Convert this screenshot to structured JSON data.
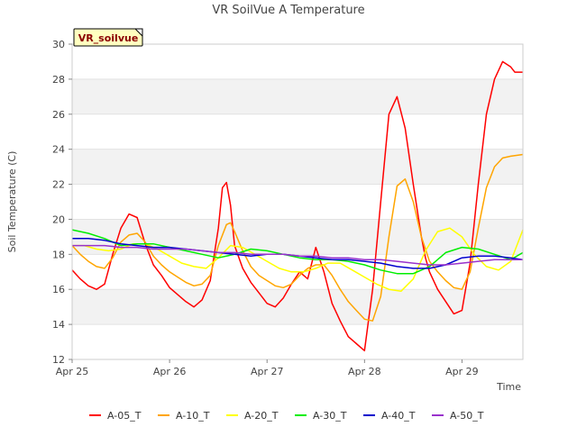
{
  "chart_data": {
    "type": "line",
    "title": "VR SoilVue A Temperature",
    "xlabel": "Time",
    "ylabel": "Soil Temperature (C)",
    "annotation": "VR_soilvue",
    "ylim": [
      12,
      30
    ],
    "yticks": [
      12,
      14,
      16,
      18,
      20,
      22,
      24,
      26,
      28,
      30
    ],
    "xlim": [
      "Apr 25",
      "Apr 29 15:00"
    ],
    "xticks": [
      "Apr 25",
      "Apr 26",
      "Apr 27",
      "Apr 28",
      "Apr 29"
    ],
    "grid": "horizontal bands",
    "legend_position": "bottom",
    "series": [
      {
        "name": "A-05_T",
        "color": "#ff0000",
        "x": [
          "Apr 25 00:00",
          "Apr 25 02:00",
          "Apr 25 04:00",
          "Apr 25 06:00",
          "Apr 25 08:00",
          "Apr 25 10:00",
          "Apr 25 12:00",
          "Apr 25 14:00",
          "Apr 25 16:00",
          "Apr 25 18:00",
          "Apr 25 20:00",
          "Apr 25 22:00",
          "Apr 26 00:00",
          "Apr 26 02:00",
          "Apr 26 04:00",
          "Apr 26 06:00",
          "Apr 26 08:00",
          "Apr 26 10:00",
          "Apr 26 12:00",
          "Apr 26 13:00",
          "Apr 26 14:00",
          "Apr 26 15:00",
          "Apr 26 16:00",
          "Apr 26 18:00",
          "Apr 26 20:00",
          "Apr 26 22:00",
          "Apr 27 00:00",
          "Apr 27 02:00",
          "Apr 27 04:00",
          "Apr 27 06:00",
          "Apr 27 08:00",
          "Apr 27 10:00",
          "Apr 27 12:00",
          "Apr 27 14:00",
          "Apr 27 16:00",
          "Apr 27 18:00",
          "Apr 27 20:00",
          "Apr 27 22:00",
          "Apr 28 00:00",
          "Apr 28 02:00",
          "Apr 28 04:00",
          "Apr 28 06:00",
          "Apr 28 08:00",
          "Apr 28 10:00",
          "Apr 28 12:00",
          "Apr 28 14:00",
          "Apr 28 15:00",
          "Apr 28 16:00",
          "Apr 28 18:00",
          "Apr 28 20:00",
          "Apr 28 22:00",
          "Apr 29 00:00",
          "Apr 29 02:00",
          "Apr 29 04:00",
          "Apr 29 06:00",
          "Apr 29 08:00",
          "Apr 29 10:00",
          "Apr 29 12:00",
          "Apr 29 13:00",
          "Apr 29 14:00",
          "Apr 29 15:00"
        ],
        "y": [
          17.1,
          16.6,
          16.2,
          16.0,
          16.3,
          18.0,
          19.5,
          20.3,
          20.1,
          18.6,
          17.4,
          16.8,
          16.1,
          15.7,
          15.3,
          15.0,
          15.4,
          16.5,
          19.5,
          21.8,
          22.1,
          20.8,
          18.5,
          17.2,
          16.4,
          15.8,
          15.2,
          15.0,
          15.5,
          16.3,
          17.0,
          16.6,
          18.4,
          17.0,
          15.2,
          14.2,
          13.3,
          12.9,
          12.5,
          16.0,
          21.0,
          26.0,
          27.0,
          25.2,
          22.0,
          19.0,
          17.8,
          17.0,
          16.0,
          15.3,
          14.6,
          14.8,
          17.5,
          22.0,
          26.0,
          28.0,
          29.0,
          28.7,
          28.4,
          28.4,
          28.4
        ]
      },
      {
        "name": "A-10_T",
        "color": "#ffa500",
        "x": [
          "Apr 25 00:00",
          "Apr 25 02:00",
          "Apr 25 04:00",
          "Apr 25 06:00",
          "Apr 25 08:00",
          "Apr 25 10:00",
          "Apr 25 12:00",
          "Apr 25 14:00",
          "Apr 25 16:00",
          "Apr 25 18:00",
          "Apr 25 20:00",
          "Apr 25 22:00",
          "Apr 26 00:00",
          "Apr 26 02:00",
          "Apr 26 04:00",
          "Apr 26 06:00",
          "Apr 26 08:00",
          "Apr 26 10:00",
          "Apr 26 12:00",
          "Apr 26 14:00",
          "Apr 26 15:00",
          "Apr 26 16:00",
          "Apr 26 18:00",
          "Apr 26 20:00",
          "Apr 26 22:00",
          "Apr 27 00:00",
          "Apr 27 02:00",
          "Apr 27 04:00",
          "Apr 27 06:00",
          "Apr 27 08:00",
          "Apr 27 10:00",
          "Apr 27 12:00",
          "Apr 27 14:00",
          "Apr 27 16:00",
          "Apr 27 18:00",
          "Apr 27 20:00",
          "Apr 27 22:00",
          "Apr 28 00:00",
          "Apr 28 02:00",
          "Apr 28 04:00",
          "Apr 28 06:00",
          "Apr 28 08:00",
          "Apr 28 10:00",
          "Apr 28 12:00",
          "Apr 28 14:00",
          "Apr 28 16:00",
          "Apr 28 18:00",
          "Apr 28 20:00",
          "Apr 28 22:00",
          "Apr 29 00:00",
          "Apr 29 02:00",
          "Apr 29 04:00",
          "Apr 29 06:00",
          "Apr 29 08:00",
          "Apr 29 10:00",
          "Apr 29 12:00",
          "Apr 29 15:00"
        ],
        "y": [
          18.5,
          18.0,
          17.6,
          17.3,
          17.2,
          17.8,
          18.7,
          19.1,
          19.2,
          18.7,
          17.9,
          17.4,
          17.0,
          16.7,
          16.4,
          16.2,
          16.3,
          16.8,
          18.5,
          19.7,
          19.8,
          19.3,
          18.2,
          17.3,
          16.8,
          16.5,
          16.2,
          16.1,
          16.3,
          16.8,
          17.2,
          17.4,
          17.4,
          16.8,
          16.0,
          15.3,
          14.8,
          14.3,
          14.2,
          15.6,
          19.0,
          21.9,
          22.3,
          21.0,
          19.0,
          17.6,
          17.0,
          16.5,
          16.1,
          16.0,
          17.0,
          19.5,
          21.8,
          23.0,
          23.5,
          23.6,
          23.7
        ]
      },
      {
        "name": "A-20_T",
        "color": "#ffff00",
        "x": [
          "Apr 25 00:00",
          "Apr 25 03:00",
          "Apr 25 06:00",
          "Apr 25 09:00",
          "Apr 25 12:00",
          "Apr 25 15:00",
          "Apr 25 18:00",
          "Apr 25 21:00",
          "Apr 26 00:00",
          "Apr 26 03:00",
          "Apr 26 06:00",
          "Apr 26 09:00",
          "Apr 26 12:00",
          "Apr 26 15:00",
          "Apr 26 18:00",
          "Apr 26 21:00",
          "Apr 27 00:00",
          "Apr 27 03:00",
          "Apr 27 06:00",
          "Apr 27 09:00",
          "Apr 27 12:00",
          "Apr 27 15:00",
          "Apr 27 18:00",
          "Apr 27 21:00",
          "Apr 28 00:00",
          "Apr 28 03:00",
          "Apr 28 06:00",
          "Apr 28 09:00",
          "Apr 28 12:00",
          "Apr 28 15:00",
          "Apr 28 18:00",
          "Apr 28 21:00",
          "Apr 29 00:00",
          "Apr 29 03:00",
          "Apr 29 06:00",
          "Apr 29 09:00",
          "Apr 29 12:00",
          "Apr 29 15:00"
        ],
        "y": [
          18.5,
          18.5,
          18.3,
          18.2,
          18.3,
          18.6,
          18.6,
          18.3,
          17.9,
          17.5,
          17.3,
          17.2,
          17.8,
          18.5,
          18.4,
          18.0,
          17.6,
          17.2,
          17.0,
          17.0,
          17.2,
          17.5,
          17.5,
          17.1,
          16.7,
          16.3,
          16.0,
          15.9,
          16.6,
          18.2,
          19.3,
          19.5,
          19.0,
          18.0,
          17.3,
          17.1,
          17.6,
          19.4
        ]
      },
      {
        "name": "A-30_T",
        "color": "#00ee00",
        "x": [
          "Apr 25 00:00",
          "Apr 25 04:00",
          "Apr 25 08:00",
          "Apr 25 12:00",
          "Apr 25 16:00",
          "Apr 25 20:00",
          "Apr 26 00:00",
          "Apr 26 04:00",
          "Apr 26 08:00",
          "Apr 26 12:00",
          "Apr 26 16:00",
          "Apr 26 20:00",
          "Apr 27 00:00",
          "Apr 27 04:00",
          "Apr 27 08:00",
          "Apr 27 12:00",
          "Apr 27 16:00",
          "Apr 27 20:00",
          "Apr 28 00:00",
          "Apr 28 04:00",
          "Apr 28 08:00",
          "Apr 28 12:00",
          "Apr 28 16:00",
          "Apr 28 20:00",
          "Apr 29 00:00",
          "Apr 29 04:00",
          "Apr 29 08:00",
          "Apr 29 12:00",
          "Apr 29 15:00"
        ],
        "y": [
          19.4,
          19.2,
          18.9,
          18.5,
          18.6,
          18.6,
          18.4,
          18.2,
          18.0,
          17.8,
          18.0,
          18.3,
          18.2,
          18.0,
          17.8,
          17.7,
          17.7,
          17.6,
          17.4,
          17.1,
          16.9,
          16.9,
          17.3,
          18.1,
          18.4,
          18.3,
          18.0,
          17.7,
          18.1
        ]
      },
      {
        "name": "A-40_T",
        "color": "#0000cc",
        "x": [
          "Apr 25 00:00",
          "Apr 25 04:00",
          "Apr 25 08:00",
          "Apr 25 12:00",
          "Apr 25 16:00",
          "Apr 25 20:00",
          "Apr 26 00:00",
          "Apr 26 04:00",
          "Apr 26 08:00",
          "Apr 26 12:00",
          "Apr 26 16:00",
          "Apr 26 20:00",
          "Apr 27 00:00",
          "Apr 27 04:00",
          "Apr 27 08:00",
          "Apr 27 12:00",
          "Apr 27 16:00",
          "Apr 27 20:00",
          "Apr 28 00:00",
          "Apr 28 04:00",
          "Apr 28 08:00",
          "Apr 28 12:00",
          "Apr 28 16:00",
          "Apr 28 20:00",
          "Apr 29 00:00",
          "Apr 29 04:00",
          "Apr 29 08:00",
          "Apr 29 12:00",
          "Apr 29 15:00"
        ],
        "y": [
          18.9,
          18.9,
          18.8,
          18.6,
          18.5,
          18.4,
          18.4,
          18.3,
          18.2,
          18.1,
          18.0,
          17.9,
          18.0,
          18.0,
          17.9,
          17.8,
          17.7,
          17.7,
          17.6,
          17.5,
          17.3,
          17.2,
          17.2,
          17.4,
          17.8,
          17.9,
          17.9,
          17.8,
          17.7
        ]
      },
      {
        "name": "A-50_T",
        "color": "#9932cc",
        "x": [
          "Apr 25 00:00",
          "Apr 25 04:00",
          "Apr 25 08:00",
          "Apr 25 12:00",
          "Apr 25 16:00",
          "Apr 25 20:00",
          "Apr 26 00:00",
          "Apr 26 04:00",
          "Apr 26 08:00",
          "Apr 26 12:00",
          "Apr 26 16:00",
          "Apr 26 20:00",
          "Apr 27 00:00",
          "Apr 27 04:00",
          "Apr 27 08:00",
          "Apr 27 12:00",
          "Apr 27 16:00",
          "Apr 27 20:00",
          "Apr 28 00:00",
          "Apr 28 04:00",
          "Apr 28 08:00",
          "Apr 28 12:00",
          "Apr 28 16:00",
          "Apr 28 20:00",
          "Apr 29 00:00",
          "Apr 29 04:00",
          "Apr 29 08:00",
          "Apr 29 12:00",
          "Apr 29 15:00"
        ],
        "y": [
          18.5,
          18.5,
          18.5,
          18.4,
          18.4,
          18.3,
          18.3,
          18.3,
          18.2,
          18.1,
          18.1,
          18.0,
          18.0,
          18.0,
          17.9,
          17.9,
          17.8,
          17.8,
          17.7,
          17.7,
          17.6,
          17.5,
          17.4,
          17.4,
          17.5,
          17.6,
          17.7,
          17.7,
          17.7
        ]
      }
    ]
  }
}
